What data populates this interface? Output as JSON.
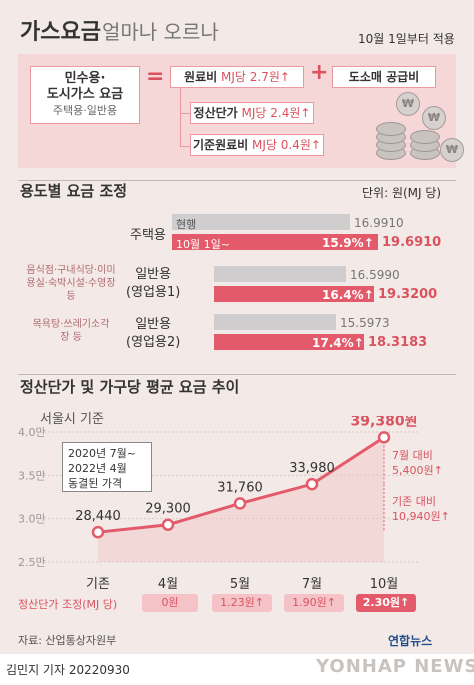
{
  "header": {
    "title_main": "가스요금",
    "title_sub": "얼마나 오르나",
    "date_note": "10월 1일부터 적용"
  },
  "formula": {
    "left_line1": "민수용·",
    "left_line2": "도시가스 요금",
    "left_line3": "주택용·일반용",
    "equals": "=",
    "plus": "+",
    "raw_label": "원료비",
    "raw_value": "MJ당 2.7원↑",
    "retail_label": "도소매 공급비",
    "settle_label": "정산단가",
    "settle_value": "MJ당 2.4원↑",
    "base_label": "기준원료비",
    "base_value": "MJ당 0.4원↑",
    "coin_symbol": "₩"
  },
  "usage": {
    "title": "용도별 요금 조정",
    "unit": "단위: 원(MJ 당)",
    "current_label": "현행",
    "new_label": "10월 1일~",
    "rows": [
      {
        "side_label": "",
        "name_line1": "주택용",
        "name_line2": "",
        "current": "16.9910",
        "pct": "15.9%↑",
        "new": "19.6910"
      },
      {
        "side_label": "음식점·구내식당·이미용실·숙박시설·수영장 등",
        "name_line1": "일반용",
        "name_line2": "(영업용1)",
        "current": "16.5990",
        "pct": "16.4%↑",
        "new": "19.3200"
      },
      {
        "side_label": "목욕탕·쓰레기소각장 등",
        "name_line1": "일반용",
        "name_line2": "(영업용2)",
        "current": "15.5973",
        "pct": "17.4%↑",
        "new": "18.3183"
      }
    ]
  },
  "chart_section": {
    "title": "정산단가 및 가구당 평균 요금 추이",
    "region": "서울시 기준",
    "note_line1": "2020년 7월~",
    "note_line2": "2022년 4월",
    "note_line3": "동결된 가격",
    "annot_july_l1": "7월 대비",
    "annot_july_l2": "5,400원↑",
    "annot_base_l1": "기존 대비",
    "annot_base_l2": "10,940원↑",
    "adj_label": "정산단가 조정(MJ 당)",
    "adjustments": [
      "0원",
      "1.23원↑",
      "1.90원↑",
      "2.30원↑"
    ]
  },
  "chart_data": {
    "type": "line",
    "x": [
      "기존",
      "4월",
      "5월",
      "7월",
      "10월"
    ],
    "series": [
      {
        "values": [
          28440,
          29300,
          31760,
          33980,
          39380
        ]
      }
    ],
    "point_labels": [
      "28,440",
      "29,300",
      "31,760",
      "33,980",
      "39,380원"
    ],
    "ytick_labels": [
      "4.0만",
      "3.5만",
      "3.0만",
      "2.5만"
    ],
    "ylim": [
      25000,
      40000
    ],
    "xlabel": "",
    "ylabel": "",
    "colors": {
      "line": "#e35b6a",
      "point_fill": "#ffffff"
    }
  },
  "footer": {
    "source": "자료: 산업통상자원부",
    "byline": "김민지 기자  20220930",
    "agency": "연합뉴스",
    "agency_en": "YONHAP NEWS"
  }
}
